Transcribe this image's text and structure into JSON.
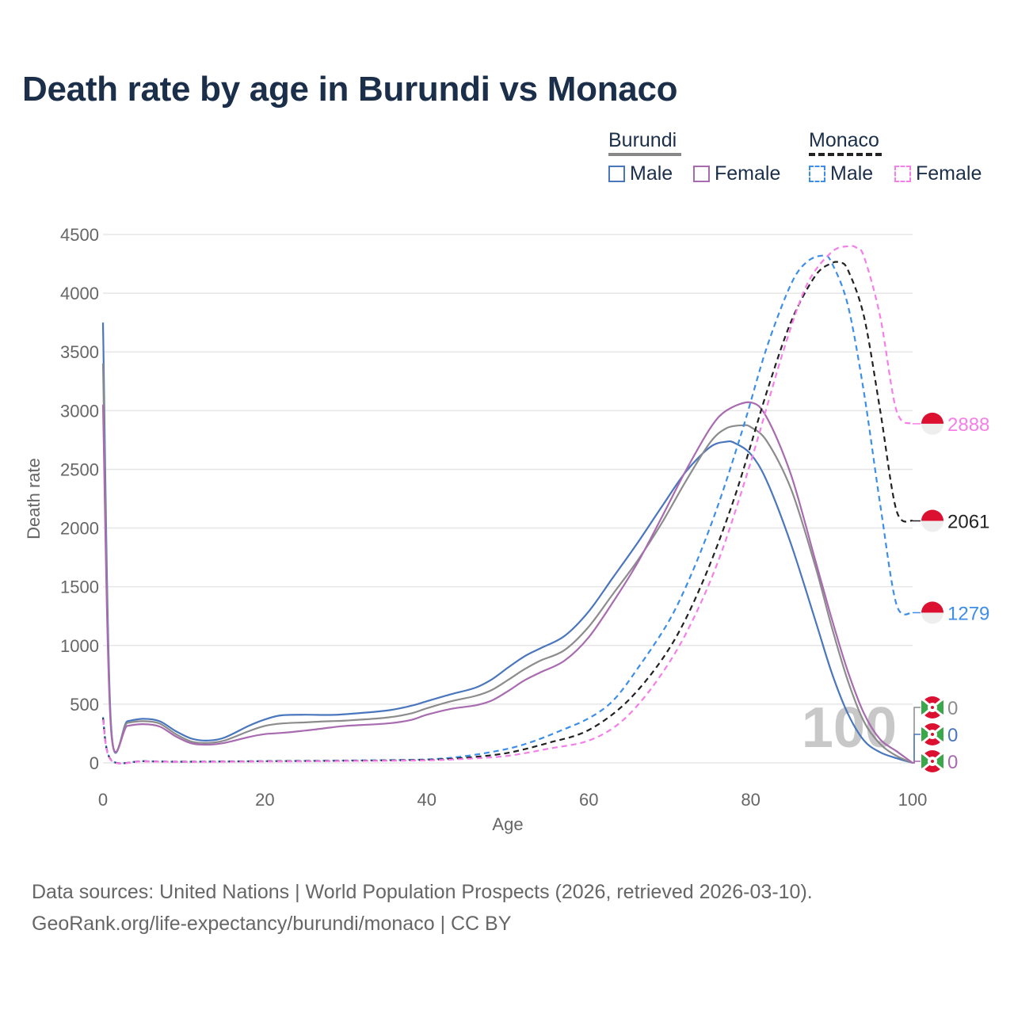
{
  "chart_data": {
    "type": "line",
    "title": "Death rate by age in Burundi vs Monaco",
    "xlabel": "Age",
    "ylabel": "Death rate",
    "xlim": [
      0,
      100
    ],
    "ylim": [
      0,
      4500
    ],
    "x_ticks": [
      "0",
      "20",
      "40",
      "60",
      "80",
      "100"
    ],
    "y_ticks": [
      "0",
      "500",
      "1000",
      "1500",
      "2000",
      "2500",
      "3000",
      "3500",
      "4000",
      "4500"
    ],
    "grid": true,
    "watermark": "100",
    "legend": {
      "groups": [
        {
          "title": "Burundi",
          "color": "#888888",
          "dashed": false,
          "items": [
            {
              "label": "Male",
              "color": "#4a76bd",
              "dashed": false
            },
            {
              "label": "Female",
              "color": "#a86bb0",
              "dashed": false
            }
          ]
        },
        {
          "title": "Monaco",
          "color": "#222222",
          "dashed": true,
          "items": [
            {
              "label": "Male",
              "color": "#3d8ee8",
              "dashed": true
            },
            {
              "label": "Female",
              "color": "#f57ee8",
              "dashed": true
            }
          ]
        }
      ]
    },
    "series": [
      {
        "name": "Burundi Male",
        "color": "#4a76bd",
        "dashed": false,
        "width": 2.2,
        "x": [
          0,
          1,
          3,
          5,
          7,
          9,
          11,
          13,
          15,
          18,
          20,
          22,
          25,
          28,
          30,
          35,
          38,
          40,
          43,
          46,
          48,
          50,
          52,
          54,
          57,
          60,
          63,
          66,
          69,
          72,
          75,
          77,
          78,
          80,
          82,
          85,
          88,
          90,
          92,
          94,
          96,
          98,
          100
        ],
        "y": [
          3750,
          320,
          355,
          375,
          355,
          270,
          205,
          190,
          215,
          315,
          370,
          405,
          410,
          408,
          415,
          445,
          485,
          525,
          585,
          640,
          710,
          810,
          905,
          975,
          1080,
          1290,
          1580,
          1870,
          2180,
          2480,
          2690,
          2735,
          2725,
          2630,
          2400,
          1860,
          1210,
          770,
          420,
          190,
          90,
          40,
          0
        ],
        "end_label": "0",
        "end_flag": "burundi"
      },
      {
        "name": "Burundi Total",
        "color": "#8c8c8c",
        "dashed": false,
        "width": 2.2,
        "x": [
          0,
          1,
          3,
          5,
          7,
          9,
          11,
          13,
          15,
          18,
          20,
          22,
          25,
          28,
          30,
          35,
          38,
          40,
          43,
          46,
          48,
          50,
          52,
          54,
          57,
          60,
          63,
          66,
          69,
          72,
          75,
          77,
          79,
          80,
          82,
          85,
          88,
          90,
          92,
          94,
          96,
          98,
          100
        ],
        "y": [
          3400,
          300,
          340,
          355,
          335,
          245,
          180,
          170,
          190,
          270,
          315,
          335,
          345,
          355,
          360,
          385,
          420,
          465,
          525,
          570,
          620,
          705,
          795,
          870,
          960,
          1160,
          1440,
          1720,
          2040,
          2400,
          2730,
          2850,
          2875,
          2860,
          2740,
          2330,
          1670,
          1160,
          700,
          350,
          160,
          60,
          0
        ],
        "end_label": "0",
        "end_flag": "burundi"
      },
      {
        "name": "Burundi Female",
        "color": "#a86bb0",
        "dashed": false,
        "width": 2.2,
        "x": [
          0,
          1,
          3,
          5,
          7,
          9,
          11,
          13,
          15,
          18,
          20,
          22,
          25,
          28,
          30,
          35,
          38,
          40,
          43,
          46,
          48,
          50,
          52,
          54,
          57,
          60,
          63,
          66,
          69,
          72,
          75,
          77,
          80,
          82,
          85,
          88,
          90,
          92,
          94,
          96,
          98,
          100
        ],
        "y": [
          3050,
          280,
          315,
          330,
          310,
          225,
          165,
          155,
          170,
          220,
          245,
          255,
          275,
          300,
          315,
          335,
          365,
          410,
          460,
          490,
          530,
          610,
          700,
          770,
          870,
          1070,
          1370,
          1700,
          2090,
          2490,
          2850,
          3000,
          3070,
          2940,
          2450,
          1720,
          1230,
          780,
          420,
          200,
          100,
          0
        ],
        "end_label": "0",
        "end_flag": "burundi"
      },
      {
        "name": "Monaco Male",
        "color": "#3d8ee8",
        "dashed": true,
        "width": 2.2,
        "x": [
          0,
          1,
          5,
          10,
          20,
          30,
          40,
          45,
          50,
          53,
          56,
          60,
          63,
          66,
          70,
          73,
          76,
          79,
          82,
          85,
          87,
          89,
          90,
          92,
          94,
          96,
          98,
          100
        ],
        "y": [
          390,
          25,
          15,
          10,
          15,
          20,
          30,
          60,
          120,
          180,
          260,
          380,
          530,
          800,
          1220,
          1660,
          2200,
          2840,
          3540,
          4080,
          4270,
          4320,
          4260,
          3900,
          3150,
          2200,
          1350,
          1279
        ],
        "end_label": "1279",
        "end_flag": "monaco"
      },
      {
        "name": "Monaco Total",
        "color": "#222222",
        "dashed": true,
        "width": 2.2,
        "x": [
          0,
          1,
          5,
          10,
          20,
          30,
          40,
          45,
          50,
          55,
          60,
          65,
          70,
          74,
          78,
          82,
          85,
          88,
          90,
          91,
          92,
          94,
          96,
          98,
          100
        ],
        "y": [
          380,
          24,
          14,
          10,
          14,
          18,
          26,
          45,
          85,
          170,
          280,
          540,
          980,
          1530,
          2260,
          3160,
          3760,
          4150,
          4255,
          4260,
          4200,
          3800,
          3000,
          2150,
          2061
        ],
        "end_label": "2061",
        "end_flag": "monaco"
      },
      {
        "name": "Monaco Female",
        "color": "#f57ee8",
        "dashed": true,
        "width": 2.2,
        "x": [
          0,
          1,
          5,
          10,
          20,
          30,
          40,
          45,
          50,
          55,
          60,
          64,
          68,
          72,
          76,
          80,
          84,
          87,
          90,
          92,
          93,
          94,
          96,
          98,
          100
        ],
        "y": [
          370,
          22,
          13,
          9,
          12,
          16,
          22,
          35,
          60,
          120,
          190,
          350,
          660,
          1100,
          1720,
          2560,
          3500,
          4080,
          4350,
          4400,
          4390,
          4310,
          3800,
          3000,
          2888
        ],
        "end_label": "2888",
        "end_flag": "monaco"
      }
    ]
  },
  "source": {
    "line1": "Data sources: United Nations | World Population Prospects (2026, retrieved 2026-03-10).",
    "line2": "GeoRank.org/life-expectancy/burundi/monaco | CC BY"
  }
}
